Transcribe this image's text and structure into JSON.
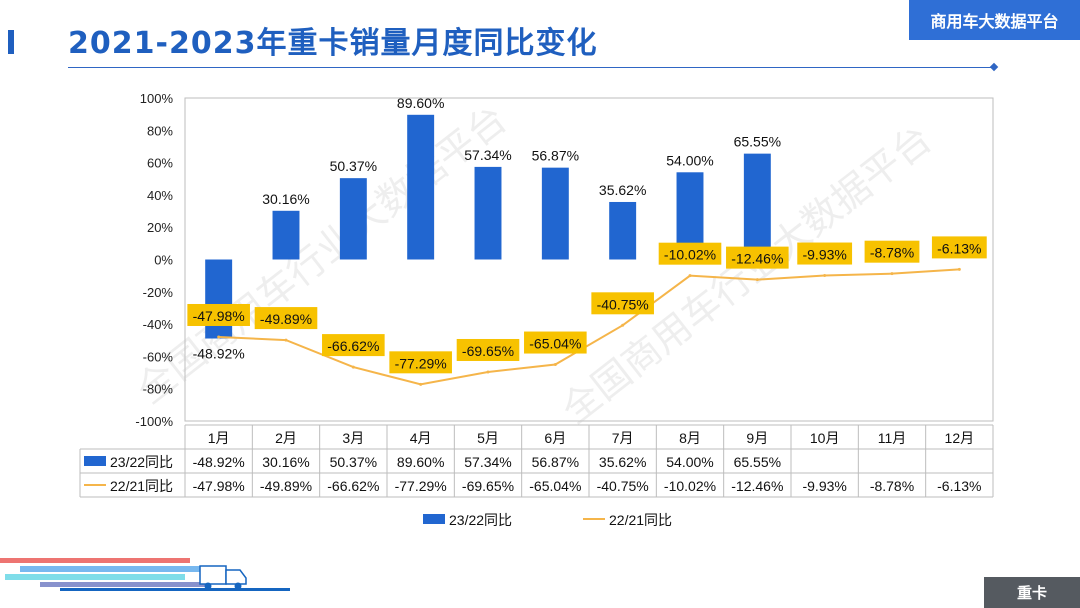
{
  "page": {
    "title": "2021-2023年重卡销量月度同比变化",
    "brand": "商用车大数据平台",
    "footer_tag": "重卡",
    "watermark": "全国商用车行业大数据平台",
    "colors": {
      "bar": "#2166d0",
      "line": "#f5b54a",
      "label_bg": "#f7c200",
      "accent": "#1f5fbf"
    }
  },
  "chart_data": {
    "type": "bar",
    "title": "2021-2023年重卡销量月度同比变化",
    "categories": [
      "1月",
      "2月",
      "3月",
      "4月",
      "5月",
      "6月",
      "7月",
      "8月",
      "9月",
      "10月",
      "11月",
      "12月"
    ],
    "ylim": [
      -100,
      100
    ],
    "yticks": [
      100,
      80,
      60,
      40,
      20,
      0,
      -20,
      -40,
      -60,
      -80,
      -100
    ],
    "ytick_labels": [
      "100%",
      "80%",
      "60%",
      "40%",
      "20%",
      "0%",
      "-20%",
      "-40%",
      "-60%",
      "-80%",
      "-100%"
    ],
    "grid": false,
    "legend": "bottom",
    "series": [
      {
        "name": "23/22同比",
        "type": "bar",
        "values": [
          -48.92,
          30.16,
          50.37,
          89.6,
          57.34,
          56.87,
          35.62,
          54.0,
          65.55,
          null,
          null,
          null
        ],
        "labels": [
          "-48.92%",
          "30.16%",
          "50.37%",
          "89.60%",
          "57.34%",
          "56.87%",
          "35.62%",
          "54.00%",
          "65.55%",
          "",
          "",
          ""
        ]
      },
      {
        "name": "22/21同比",
        "type": "line",
        "values": [
          -47.98,
          -49.89,
          -66.62,
          -77.29,
          -69.65,
          -65.04,
          -40.75,
          -10.02,
          -12.46,
          -9.93,
          -8.78,
          -6.13
        ],
        "labels": [
          "-47.98%",
          "-49.89%",
          "-66.62%",
          "-77.29%",
          "-69.65%",
          "-65.04%",
          "-40.75%",
          "-10.02%",
          "-12.46%",
          "-9.93%",
          "-8.78%",
          "-6.13%"
        ]
      }
    ]
  }
}
